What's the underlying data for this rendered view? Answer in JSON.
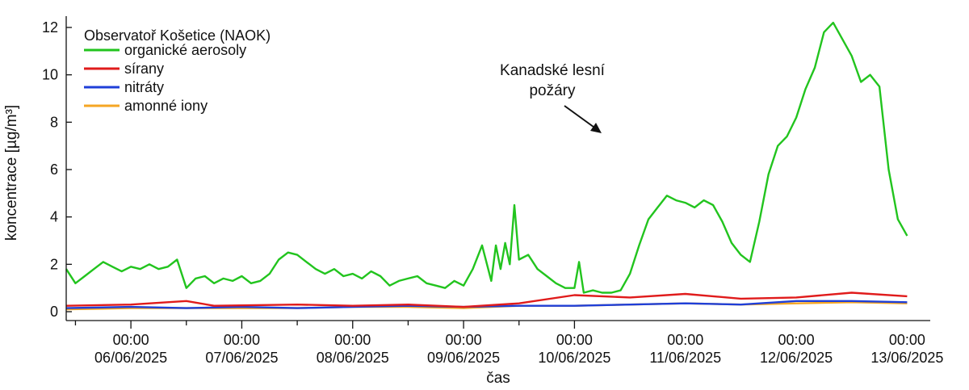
{
  "chart_data": {
    "type": "line",
    "xlabel": "čas",
    "ylabel": "koncentrace [µg/m³]",
    "x_range": [
      "2025-06-05T10:00",
      "2025-06-13T05:00"
    ],
    "ylim": [
      0,
      12.5
    ],
    "y_ticks": [
      0,
      2,
      4,
      6,
      8,
      10,
      12
    ],
    "x_ticks": [
      {
        "time": "00:00",
        "date": "06/06/2025"
      },
      {
        "time": "00:00",
        "date": "07/06/2025"
      },
      {
        "time": "00:00",
        "date": "08/06/2025"
      },
      {
        "time": "00:00",
        "date": "09/06/2025"
      },
      {
        "time": "00:00",
        "date": "10/06/2025"
      },
      {
        "time": "00:00",
        "date": "11/06/2025"
      },
      {
        "time": "00:00",
        "date": "12/06/2025"
      },
      {
        "time": "00:00",
        "date": "13/06/2025"
      }
    ],
    "grid": false,
    "legend": {
      "title": "Observatoř Košetice (NAOK)",
      "position": "top-left"
    },
    "annotation": {
      "lines": [
        "Kanadské lesní",
        "požáry"
      ],
      "points_to": {
        "x": "2025-06-10T08:00",
        "y": 7.3
      }
    },
    "series": [
      {
        "name": "organické aerosoly",
        "color": "#22c41e",
        "points": [
          [
            "2025-06-05T10:00",
            1.8
          ],
          [
            "2025-06-05T12:00",
            1.2
          ],
          [
            "2025-06-05T14:00",
            1.5
          ],
          [
            "2025-06-05T16:00",
            1.8
          ],
          [
            "2025-06-05T18:00",
            2.1
          ],
          [
            "2025-06-05T20:00",
            1.9
          ],
          [
            "2025-06-05T22:00",
            1.7
          ],
          [
            "2025-06-06T00:00",
            1.9
          ],
          [
            "2025-06-06T02:00",
            1.8
          ],
          [
            "2025-06-06T04:00",
            2.0
          ],
          [
            "2025-06-06T06:00",
            1.8
          ],
          [
            "2025-06-06T08:00",
            1.9
          ],
          [
            "2025-06-06T10:00",
            2.2
          ],
          [
            "2025-06-06T12:00",
            1.0
          ],
          [
            "2025-06-06T14:00",
            1.4
          ],
          [
            "2025-06-06T16:00",
            1.5
          ],
          [
            "2025-06-06T18:00",
            1.2
          ],
          [
            "2025-06-06T20:00",
            1.4
          ],
          [
            "2025-06-06T22:00",
            1.3
          ],
          [
            "2025-06-07T00:00",
            1.5
          ],
          [
            "2025-06-07T02:00",
            1.2
          ],
          [
            "2025-06-07T04:00",
            1.3
          ],
          [
            "2025-06-07T06:00",
            1.6
          ],
          [
            "2025-06-07T08:00",
            2.2
          ],
          [
            "2025-06-07T10:00",
            2.5
          ],
          [
            "2025-06-07T12:00",
            2.4
          ],
          [
            "2025-06-07T14:00",
            2.1
          ],
          [
            "2025-06-07T16:00",
            1.8
          ],
          [
            "2025-06-07T18:00",
            1.6
          ],
          [
            "2025-06-07T20:00",
            1.8
          ],
          [
            "2025-06-07T22:00",
            1.5
          ],
          [
            "2025-06-08T00:00",
            1.6
          ],
          [
            "2025-06-08T02:00",
            1.4
          ],
          [
            "2025-06-08T04:00",
            1.7
          ],
          [
            "2025-06-08T06:00",
            1.5
          ],
          [
            "2025-06-08T08:00",
            1.1
          ],
          [
            "2025-06-08T10:00",
            1.3
          ],
          [
            "2025-06-08T12:00",
            1.4
          ],
          [
            "2025-06-08T14:00",
            1.5
          ],
          [
            "2025-06-08T16:00",
            1.2
          ],
          [
            "2025-06-08T18:00",
            1.1
          ],
          [
            "2025-06-08T20:00",
            1.0
          ],
          [
            "2025-06-08T22:00",
            1.3
          ],
          [
            "2025-06-09T00:00",
            1.1
          ],
          [
            "2025-06-09T02:00",
            1.8
          ],
          [
            "2025-06-09T04:00",
            2.8
          ],
          [
            "2025-06-09T06:00",
            1.3
          ],
          [
            "2025-06-09T07:00",
            2.8
          ],
          [
            "2025-06-09T08:00",
            1.8
          ],
          [
            "2025-06-09T09:00",
            2.9
          ],
          [
            "2025-06-09T10:00",
            2.0
          ],
          [
            "2025-06-09T11:00",
            4.5
          ],
          [
            "2025-06-09T12:00",
            2.2
          ],
          [
            "2025-06-09T14:00",
            2.4
          ],
          [
            "2025-06-09T16:00",
            1.8
          ],
          [
            "2025-06-09T18:00",
            1.5
          ],
          [
            "2025-06-09T20:00",
            1.2
          ],
          [
            "2025-06-09T22:00",
            1.0
          ],
          [
            "2025-06-10T00:00",
            1.0
          ],
          [
            "2025-06-10T01:00",
            2.1
          ],
          [
            "2025-06-10T02:00",
            0.8
          ],
          [
            "2025-06-10T04:00",
            0.9
          ],
          [
            "2025-06-10T06:00",
            0.8
          ],
          [
            "2025-06-10T08:00",
            0.8
          ],
          [
            "2025-06-10T10:00",
            0.9
          ],
          [
            "2025-06-10T12:00",
            1.6
          ],
          [
            "2025-06-10T14:00",
            2.8
          ],
          [
            "2025-06-10T16:00",
            3.9
          ],
          [
            "2025-06-10T18:00",
            4.4
          ],
          [
            "2025-06-10T20:00",
            4.9
          ],
          [
            "2025-06-10T22:00",
            4.7
          ],
          [
            "2025-06-11T00:00",
            4.6
          ],
          [
            "2025-06-11T02:00",
            4.4
          ],
          [
            "2025-06-11T04:00",
            4.7
          ],
          [
            "2025-06-11T06:00",
            4.5
          ],
          [
            "2025-06-11T08:00",
            3.8
          ],
          [
            "2025-06-11T10:00",
            2.9
          ],
          [
            "2025-06-11T12:00",
            2.4
          ],
          [
            "2025-06-11T14:00",
            2.1
          ],
          [
            "2025-06-11T16:00",
            3.8
          ],
          [
            "2025-06-11T18:00",
            5.8
          ],
          [
            "2025-06-11T20:00",
            7.0
          ],
          [
            "2025-06-11T22:00",
            7.4
          ],
          [
            "2025-06-12T00:00",
            8.2
          ],
          [
            "2025-06-12T02:00",
            9.4
          ],
          [
            "2025-06-12T04:00",
            10.3
          ],
          [
            "2025-06-12T06:00",
            11.8
          ],
          [
            "2025-06-12T08:00",
            12.2
          ],
          [
            "2025-06-12T10:00",
            11.5
          ],
          [
            "2025-06-12T12:00",
            10.8
          ],
          [
            "2025-06-12T14:00",
            9.7
          ],
          [
            "2025-06-12T16:00",
            10.0
          ],
          [
            "2025-06-12T18:00",
            9.5
          ],
          [
            "2025-06-12T20:00",
            6.0
          ],
          [
            "2025-06-12T22:00",
            3.9
          ],
          [
            "2025-06-13T00:00",
            3.2
          ]
        ]
      },
      {
        "name": "sírany",
        "color": "#e01b1b",
        "points": [
          [
            "2025-06-05T10:00",
            0.25
          ],
          [
            "2025-06-06T00:00",
            0.3
          ],
          [
            "2025-06-06T12:00",
            0.45
          ],
          [
            "2025-06-06T18:00",
            0.25
          ],
          [
            "2025-06-07T12:00",
            0.3
          ],
          [
            "2025-06-08T00:00",
            0.25
          ],
          [
            "2025-06-08T12:00",
            0.3
          ],
          [
            "2025-06-09T00:00",
            0.2
          ],
          [
            "2025-06-09T12:00",
            0.35
          ],
          [
            "2025-06-10T00:00",
            0.7
          ],
          [
            "2025-06-10T12:00",
            0.6
          ],
          [
            "2025-06-11T00:00",
            0.75
          ],
          [
            "2025-06-11T12:00",
            0.55
          ],
          [
            "2025-06-12T00:00",
            0.6
          ],
          [
            "2025-06-12T12:00",
            0.8
          ],
          [
            "2025-06-13T00:00",
            0.65
          ]
        ]
      },
      {
        "name": "nitráty",
        "color": "#1f3fd8",
        "points": [
          [
            "2025-06-05T10:00",
            0.15
          ],
          [
            "2025-06-06T00:00",
            0.2
          ],
          [
            "2025-06-06T12:00",
            0.15
          ],
          [
            "2025-06-07T00:00",
            0.2
          ],
          [
            "2025-06-07T12:00",
            0.15
          ],
          [
            "2025-06-08T00:00",
            0.2
          ],
          [
            "2025-06-08T12:00",
            0.25
          ],
          [
            "2025-06-09T00:00",
            0.2
          ],
          [
            "2025-06-09T12:00",
            0.25
          ],
          [
            "2025-06-10T00:00",
            0.25
          ],
          [
            "2025-06-10T12:00",
            0.3
          ],
          [
            "2025-06-11T00:00",
            0.35
          ],
          [
            "2025-06-11T12:00",
            0.3
          ],
          [
            "2025-06-12T00:00",
            0.45
          ],
          [
            "2025-06-12T12:00",
            0.45
          ],
          [
            "2025-06-13T00:00",
            0.4
          ]
        ]
      },
      {
        "name": "amonné iony",
        "color": "#f5a623",
        "points": [
          [
            "2025-06-05T10:00",
            0.1
          ],
          [
            "2025-06-06T00:00",
            0.15
          ],
          [
            "2025-06-06T12:00",
            0.15
          ],
          [
            "2025-06-07T00:00",
            0.15
          ],
          [
            "2025-06-07T12:00",
            0.15
          ],
          [
            "2025-06-08T00:00",
            0.2
          ],
          [
            "2025-06-08T12:00",
            0.2
          ],
          [
            "2025-06-09T00:00",
            0.15
          ],
          [
            "2025-06-09T12:00",
            0.25
          ],
          [
            "2025-06-10T00:00",
            0.25
          ],
          [
            "2025-06-10T12:00",
            0.3
          ],
          [
            "2025-06-11T00:00",
            0.35
          ],
          [
            "2025-06-11T12:00",
            0.3
          ],
          [
            "2025-06-12T00:00",
            0.35
          ],
          [
            "2025-06-12T12:00",
            0.4
          ],
          [
            "2025-06-13T00:00",
            0.35
          ]
        ]
      }
    ]
  }
}
